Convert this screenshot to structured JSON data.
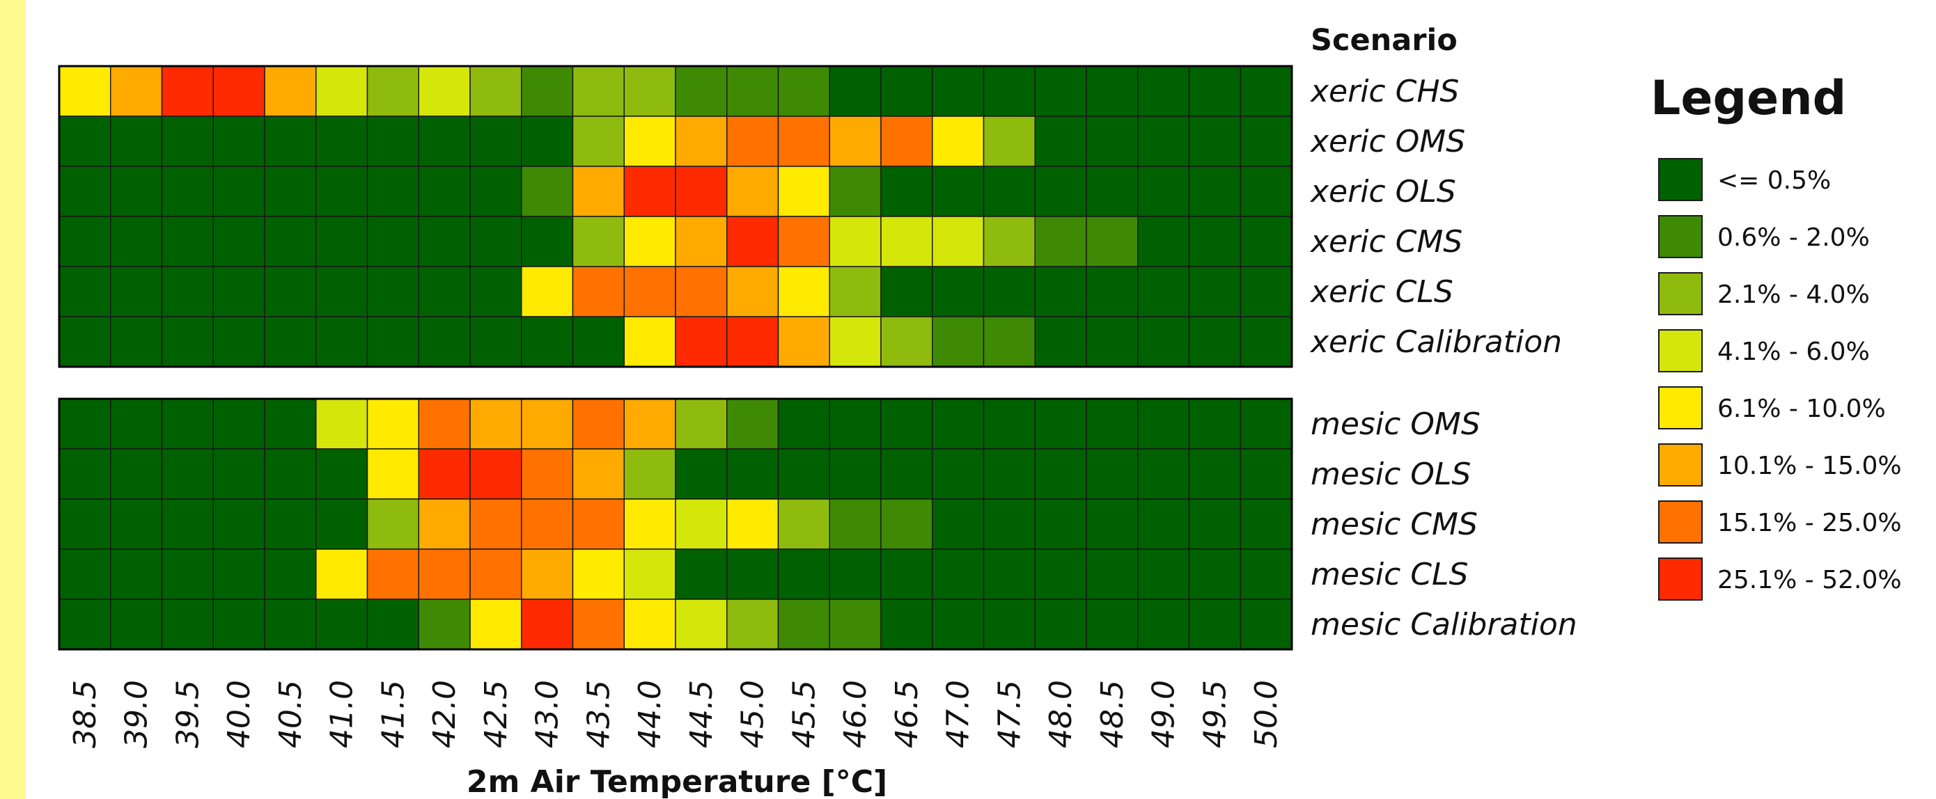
{
  "chart_data": {
    "type": "heatmap",
    "scenario_title": "Scenario",
    "xlabel": "2m Air Temperature [°C]",
    "x": [
      "38.5",
      "39.0",
      "39.5",
      "40.0",
      "40.5",
      "41.0",
      "41.5",
      "42.0",
      "42.5",
      "43.0",
      "43.5",
      "44.0",
      "44.5",
      "45.0",
      "45.5",
      "46.0",
      "46.5",
      "47.0",
      "47.5",
      "48.0",
      "48.5",
      "49.0",
      "49.5",
      "50.0"
    ],
    "legend": {
      "title": "Legend",
      "classes": [
        {
          "label": "<= 0.5%",
          "color": "#006100"
        },
        {
          "label": "0.6% - 2.0%",
          "color": "#3f8a04"
        },
        {
          "label": "2.1% - 4.0%",
          "color": "#8fbb0f"
        },
        {
          "label": "4.1% - 6.0%",
          "color": "#d5e60a"
        },
        {
          "label": "6.1% - 10.0%",
          "color": "#ffea00"
        },
        {
          "label": "10.1% - 15.0%",
          "color": "#ffaa00"
        },
        {
          "label": "15.1% - 25.0%",
          "color": "#ff7200"
        },
        {
          "label": "25.1% - 52.0%",
          "color": "#ff2a00"
        }
      ]
    },
    "groups": [
      {
        "rows": [
          {
            "name": "xeric CHS",
            "classes": [
              4,
              5,
              7,
              7,
              5,
              3,
              2,
              3,
              2,
              1,
              2,
              2,
              1,
              1,
              1,
              0,
              0,
              0,
              0,
              0,
              0,
              0,
              0,
              0
            ]
          },
          {
            "name": "xeric OMS",
            "classes": [
              0,
              0,
              0,
              0,
              0,
              0,
              0,
              0,
              0,
              0,
              2,
              4,
              5,
              6,
              6,
              5,
              6,
              4,
              2,
              0,
              0,
              0,
              0,
              0
            ]
          },
          {
            "name": "xeric OLS",
            "classes": [
              0,
              0,
              0,
              0,
              0,
              0,
              0,
              0,
              0,
              1,
              5,
              7,
              7,
              5,
              4,
              1,
              0,
              0,
              0,
              0,
              0,
              0,
              0,
              0
            ]
          },
          {
            "name": "xeric CMS",
            "classes": [
              0,
              0,
              0,
              0,
              0,
              0,
              0,
              0,
              0,
              0,
              2,
              4,
              5,
              7,
              6,
              3,
              3,
              3,
              2,
              1,
              1,
              0,
              0,
              0
            ]
          },
          {
            "name": "xeric CLS",
            "classes": [
              0,
              0,
              0,
              0,
              0,
              0,
              0,
              0,
              0,
              4,
              6,
              6,
              6,
              5,
              4,
              2,
              0,
              0,
              0,
              0,
              0,
              0,
              0,
              0
            ]
          },
          {
            "name": "xeric Calibration",
            "classes": [
              0,
              0,
              0,
              0,
              0,
              0,
              0,
              0,
              0,
              0,
              0,
              4,
              7,
              7,
              5,
              3,
              2,
              1,
              1,
              0,
              0,
              0,
              0,
              0
            ]
          }
        ]
      },
      {
        "rows": [
          {
            "name": "mesic OMS",
            "classes": [
              0,
              0,
              0,
              0,
              0,
              3,
              4,
              6,
              5,
              5,
              6,
              5,
              2,
              1,
              0,
              0,
              0,
              0,
              0,
              0,
              0,
              0,
              0,
              0
            ]
          },
          {
            "name": "mesic OLS",
            "classes": [
              0,
              0,
              0,
              0,
              0,
              0,
              4,
              7,
              7,
              6,
              5,
              2,
              0,
              0,
              0,
              0,
              0,
              0,
              0,
              0,
              0,
              0,
              0,
              0
            ]
          },
          {
            "name": "mesic CMS",
            "classes": [
              0,
              0,
              0,
              0,
              0,
              0,
              2,
              5,
              6,
              6,
              6,
              4,
              3,
              4,
              2,
              1,
              1,
              0,
              0,
              0,
              0,
              0,
              0,
              0
            ]
          },
          {
            "name": "mesic CLS",
            "classes": [
              0,
              0,
              0,
              0,
              0,
              4,
              6,
              6,
              6,
              5,
              4,
              3,
              0,
              0,
              0,
              0,
              0,
              0,
              0,
              0,
              0,
              0,
              0,
              0
            ]
          },
          {
            "name": "mesic Calibration",
            "classes": [
              0,
              0,
              0,
              0,
              0,
              0,
              0,
              1,
              4,
              7,
              6,
              4,
              3,
              2,
              1,
              1,
              0,
              0,
              0,
              0,
              0,
              0,
              0,
              0
            ]
          }
        ]
      }
    ]
  }
}
